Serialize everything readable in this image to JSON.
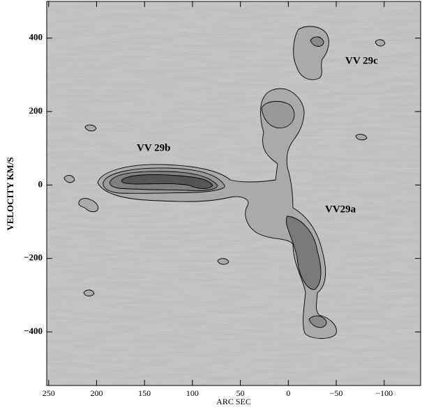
{
  "chart_data": {
    "type": "contour",
    "xlabel": "ARC SEC",
    "ylabel": "VELOCITY  KM/S",
    "xlim": [
      252,
      -138
    ],
    "ylim": [
      -546,
      500
    ],
    "xticks": [
      250,
      200,
      150,
      100,
      50,
      0,
      {
        "value": -50,
        "label": "−50"
      },
      {
        "value": -100,
        "label": "−100"
      }
    ],
    "yticks": [
      400,
      200,
      0,
      {
        "value": -200,
        "label": "−200"
      },
      {
        "value": -400,
        "label": "−400"
      }
    ],
    "annotations": [
      "VV 29b",
      "VV 29c",
      "VV29a"
    ]
  }
}
